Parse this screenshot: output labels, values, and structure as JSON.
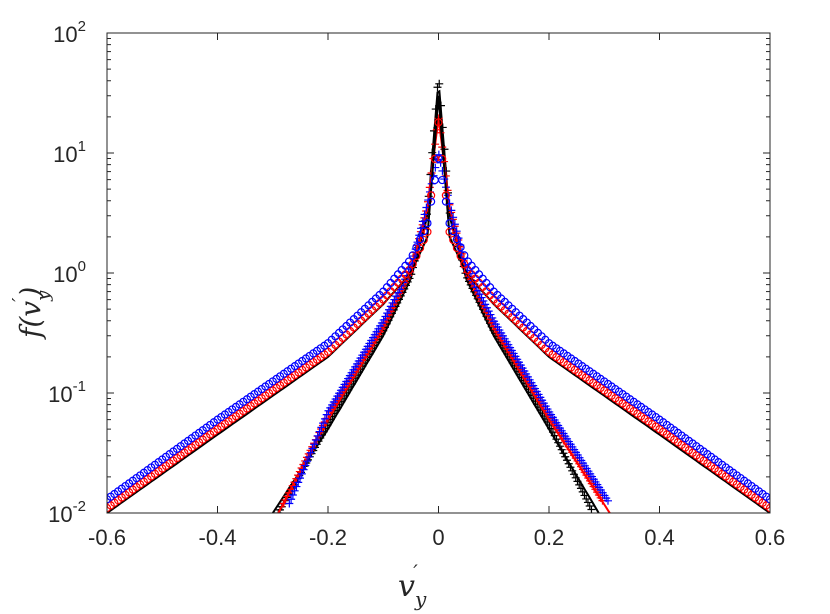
{
  "chart_data": {
    "type": "line",
    "title": "",
    "xlabel": {
      "base": "v",
      "sub": "y",
      "prime": "′"
    },
    "ylabel": {
      "prefix": "f(",
      "base": "v",
      "sub": "y",
      "prime": "′",
      "suffix": ")"
    },
    "xlim": [
      -0.6,
      0.6
    ],
    "ylim": [
      0.01,
      100
    ],
    "yscale": "log",
    "grid": false,
    "xticks": [
      "-0.6",
      "-0.4",
      "-0.2",
      "0",
      "0.2",
      "0.4",
      "0.6"
    ],
    "xtick_values": [
      -0.6,
      -0.4,
      -0.2,
      0,
      0.2,
      0.4,
      0.6
    ],
    "yticks": [
      {
        "base": "10",
        "exp": "2"
      },
      {
        "base": "10",
        "exp": "1"
      },
      {
        "base": "10",
        "exp": "0"
      },
      {
        "base": "10",
        "exp": "-1"
      },
      {
        "base": "10",
        "exp": "-2"
      }
    ],
    "ytick_values": [
      100,
      10,
      1,
      0.1,
      0.01
    ],
    "colors": {
      "black": "#000000",
      "red": "#ff0000",
      "blue": "#0000ff",
      "axis": "#262626"
    },
    "series": [
      {
        "color": "#000000",
        "marker": "line",
        "x": [
          -0.3,
          -0.2,
          -0.1,
          -0.05,
          -0.02,
          0,
          0.02,
          0.05,
          0.1,
          0.2,
          0.29
        ],
        "y": [
          0.01,
          0.05,
          0.3,
          0.9,
          3,
          40,
          3,
          0.9,
          0.3,
          0.05,
          0.01
        ]
      },
      {
        "color": "#000000",
        "marker": "plus",
        "x": [
          -0.29,
          -0.2,
          -0.1,
          -0.05,
          -0.02,
          0,
          0.02,
          0.05,
          0.1,
          0.2,
          0.28
        ],
        "y": [
          0.01,
          0.055,
          0.33,
          0.95,
          3.2,
          45,
          3.2,
          0.95,
          0.33,
          0.055,
          0.01
        ]
      },
      {
        "color": "#ff0000",
        "marker": "line",
        "x": [
          -0.29,
          -0.2,
          -0.1,
          -0.05,
          -0.02,
          0,
          0.02,
          0.05,
          0.1,
          0.2,
          0.31
        ],
        "y": [
          0.01,
          0.06,
          0.35,
          1,
          3.5,
          20,
          3.5,
          1,
          0.35,
          0.06,
          0.01
        ]
      },
      {
        "color": "#ff0000",
        "marker": "plus",
        "x": [
          -0.28,
          -0.2,
          -0.1,
          -0.05,
          -0.02,
          0,
          0.02,
          0.05,
          0.1,
          0.2,
          0.3
        ],
        "y": [
          0.012,
          0.065,
          0.36,
          1.05,
          3.6,
          20,
          3.6,
          1.05,
          0.36,
          0.065,
          0.012
        ]
      },
      {
        "color": "#0000ff",
        "marker": "plus",
        "x": [
          -0.27,
          -0.2,
          -0.1,
          -0.05,
          -0.02,
          0,
          0.02,
          0.05,
          0.1,
          0.2,
          0.31
        ],
        "y": [
          0.012,
          0.07,
          0.4,
          1.1,
          3.8,
          10,
          3.8,
          1.1,
          0.4,
          0.07,
          0.012
        ]
      },
      {
        "color": "#000000",
        "marker": "line",
        "x": [
          -0.6,
          -0.4,
          -0.2,
          -0.1,
          -0.05,
          -0.02,
          0,
          0.02,
          0.05,
          0.1,
          0.2,
          0.4,
          0.6
        ],
        "y": [
          0.01,
          0.045,
          0.2,
          0.55,
          1.0,
          2.0,
          30,
          2.0,
          1.0,
          0.55,
          0.2,
          0.045,
          0.01
        ]
      },
      {
        "color": "#ff0000",
        "marker": "circle",
        "x": [
          -0.6,
          -0.4,
          -0.2,
          -0.1,
          -0.05,
          -0.02,
          0,
          0.02,
          0.05,
          0.1,
          0.2,
          0.4,
          0.6
        ],
        "y": [
          0.011,
          0.05,
          0.22,
          0.6,
          1.1,
          2.2,
          18,
          2.2,
          1.1,
          0.6,
          0.22,
          0.05,
          0.011
        ]
      },
      {
        "color": "#0000ff",
        "marker": "circle",
        "x": [
          -0.6,
          -0.4,
          -0.2,
          -0.1,
          -0.05,
          -0.02,
          0,
          0.02,
          0.05,
          0.1,
          0.2,
          0.4,
          0.6
        ],
        "y": [
          0.013,
          0.06,
          0.26,
          0.7,
          1.3,
          2.6,
          9,
          2.6,
          1.3,
          0.7,
          0.26,
          0.06,
          0.013
        ]
      }
    ]
  }
}
